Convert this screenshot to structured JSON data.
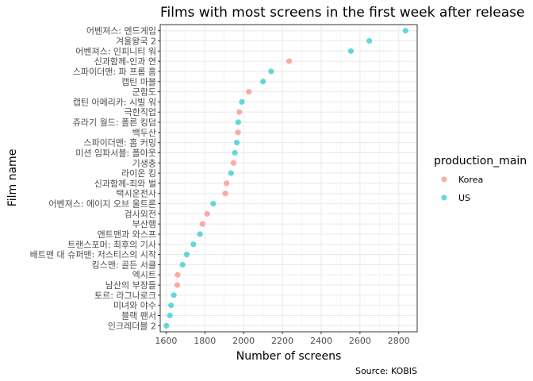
{
  "chart_data": {
    "type": "scatter",
    "title": "Films with most screens in the first week after release",
    "xlabel": "Number of screens",
    "ylabel": "Film name",
    "caption": "Source: KOBIS",
    "xlim": [
      1570,
      2895
    ],
    "xticks": [
      1600,
      1800,
      2000,
      2200,
      2400,
      2600,
      2800
    ],
    "grid": true,
    "legend": {
      "title": "production_main",
      "placement": "right",
      "entries": [
        {
          "label": "Korea",
          "color": "#F8766D"
        },
        {
          "label": "US",
          "color": "#00BFC4"
        }
      ]
    },
    "points": [
      {
        "film": "어벤져스: 엔드게임",
        "screens": 2835,
        "group": "US"
      },
      {
        "film": "겨울왕국 2",
        "screens": 2648,
        "group": "US"
      },
      {
        "film": "어벤져스: 인피니티 워",
        "screens": 2553,
        "group": "US"
      },
      {
        "film": "신과함께-인과 연",
        "screens": 2235,
        "group": "Korea"
      },
      {
        "film": "스파이더맨: 파 프롬 홈",
        "screens": 2142,
        "group": "US"
      },
      {
        "film": "캡틴 마블",
        "screens": 2100,
        "group": "US"
      },
      {
        "film": "군함도",
        "screens": 2027,
        "group": "Korea"
      },
      {
        "film": "캡틴 아메리카: 시빌 워",
        "screens": 1991,
        "group": "US"
      },
      {
        "film": "극한직업",
        "screens": 1978,
        "group": "Korea"
      },
      {
        "film": "쥬라기 월드: 폴른 킹덤",
        "screens": 1972,
        "group": "US"
      },
      {
        "film": "백두산",
        "screens": 1971,
        "group": "Korea"
      },
      {
        "film": "스파이더맨: 홈 커밍",
        "screens": 1965,
        "group": "US"
      },
      {
        "film": "미션 임파서블: 폴아웃",
        "screens": 1955,
        "group": "US"
      },
      {
        "film": "기생충",
        "screens": 1948,
        "group": "Korea"
      },
      {
        "film": "라이온 킹",
        "screens": 1935,
        "group": "US"
      },
      {
        "film": "신과함께-죄와 벌",
        "screens": 1912,
        "group": "Korea"
      },
      {
        "film": "택시운전사",
        "screens": 1906,
        "group": "Korea"
      },
      {
        "film": "어벤져스: 에이지 오브 울트론",
        "screens": 1843,
        "group": "US"
      },
      {
        "film": "검사외전",
        "screens": 1812,
        "group": "Korea"
      },
      {
        "film": "부산행",
        "screens": 1788,
        "group": "Korea"
      },
      {
        "film": "앤트맨과 와스프",
        "screens": 1775,
        "group": "US"
      },
      {
        "film": "트랜스포머: 최후의 기사",
        "screens": 1741,
        "group": "US"
      },
      {
        "film": "배트맨 대 슈퍼맨: 저스티스의 시작",
        "screens": 1707,
        "group": "US"
      },
      {
        "film": "킹스맨: 골든 서클",
        "screens": 1685,
        "group": "US"
      },
      {
        "film": "엑시트",
        "screens": 1660,
        "group": "Korea"
      },
      {
        "film": "남산의 부장들",
        "screens": 1658,
        "group": "Korea"
      },
      {
        "film": "토르: 라그나로크",
        "screens": 1640,
        "group": "US"
      },
      {
        "film": "미녀와 야수",
        "screens": 1626,
        "group": "US"
      },
      {
        "film": "블랙 팬서",
        "screens": 1620,
        "group": "US"
      },
      {
        "film": "인크레더블 2",
        "screens": 1602,
        "group": "US"
      }
    ]
  }
}
